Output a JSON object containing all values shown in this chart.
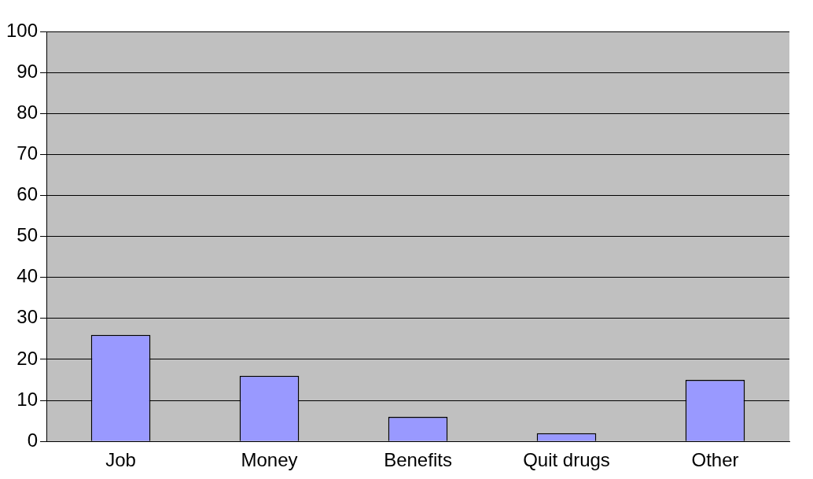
{
  "chart_data": {
    "type": "bar",
    "categories": [
      "Job",
      "Money",
      "Benefits",
      "Quit drugs",
      "Other"
    ],
    "values": [
      26,
      16,
      6,
      2,
      15
    ],
    "color": "#9999ff",
    "ylim": [
      0,
      100
    ],
    "yticks": [
      0,
      10,
      20,
      30,
      40,
      50,
      60,
      70,
      80,
      90,
      100
    ],
    "grid": "y",
    "legend": false
  }
}
